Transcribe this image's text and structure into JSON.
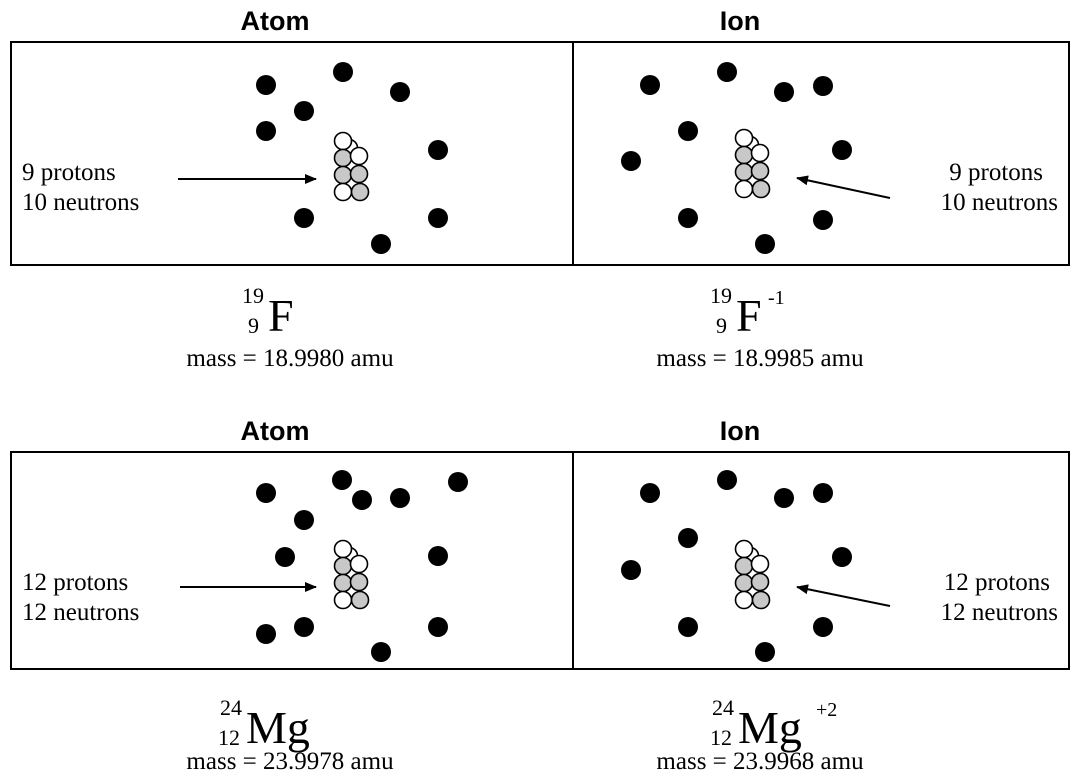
{
  "top": {
    "atom_title": "Atom",
    "ion_title": "Ion",
    "atom_label_line1": "9 protons",
    "atom_label_line2": "10 neutrons",
    "ion_label_line1": "9 protons",
    "ion_label_line2": "10 neutrons",
    "atom_notation": {
      "mass_number": "19",
      "atomic_number": "9",
      "symbol": "F",
      "charge": ""
    },
    "ion_notation": {
      "mass_number": "19",
      "atomic_number": "9",
      "symbol": "F",
      "charge": "-1"
    },
    "atom_mass": "mass = 18.9980 amu",
    "ion_mass": "mass = 18.9985 amu"
  },
  "bottom": {
    "atom_title": "Atom",
    "ion_title": "Ion",
    "atom_label_line1": "12 protons",
    "atom_label_line2": "12 neutrons",
    "ion_label_line1": "12 protons",
    "ion_label_line2": "12 neutrons",
    "atom_notation": {
      "mass_number": "24",
      "atomic_number": "12",
      "symbol": "Mg",
      "charge": ""
    },
    "ion_notation": {
      "mass_number": "24",
      "atomic_number": "12",
      "symbol": "Mg",
      "charge": "+2"
    },
    "atom_mass": "mass = 23.9978 amu",
    "ion_mass": "mass = 23.9968 amu"
  },
  "colors": {
    "electron": "#000000",
    "proton": "#ffffff",
    "neutron": "#c8c8c8",
    "line": "#000000"
  }
}
